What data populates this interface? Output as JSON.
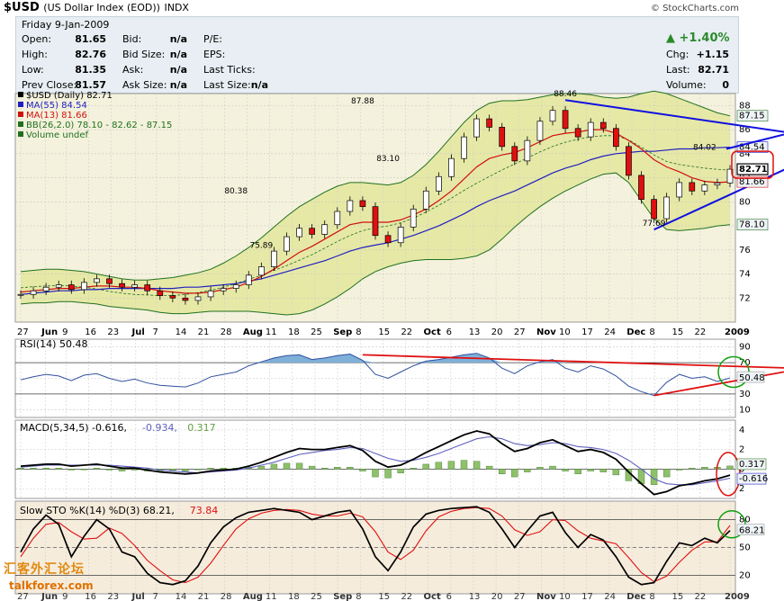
{
  "header": {
    "symbol": "$USD",
    "name": "(US Dollar Index (EOD))",
    "exchange": "INDX",
    "source": "© StockCharts.com"
  },
  "quote": {
    "date": "Friday   9-Jan-2009",
    "rows_left": [
      {
        "label": "Open:",
        "value": "81.65"
      },
      {
        "label": "High:",
        "value": "82.76"
      },
      {
        "label": "Low:",
        "value": "81.35"
      },
      {
        "label": "Prev Close:",
        "value": "81.57"
      }
    ],
    "rows_mid": [
      {
        "label": "Bid:",
        "value": "n/a"
      },
      {
        "label": "Bid Size:",
        "value": "n/a"
      },
      {
        "label": "Ask:",
        "value": "n/a"
      },
      {
        "label": "Ask Size:",
        "value": "n/a"
      }
    ],
    "rows_right": [
      {
        "label": "P/E:",
        "value": ""
      },
      {
        "label": "EPS:",
        "value": ""
      },
      {
        "label": "Last Ticks:",
        "value": ""
      },
      {
        "label": "Last Size:",
        "value": "n/a"
      }
    ],
    "pct_change": "+1.40%",
    "rows_far": [
      {
        "label": "Chg:",
        "value": "+1.15"
      },
      {
        "label": "Last:",
        "value": "82.71"
      },
      {
        "label": "Volume:",
        "value": "0"
      }
    ]
  },
  "chart_data": [
    {
      "type": "line",
      "panel": "price",
      "legend": [
        {
          "text": "$USD (Daily) 82.71",
          "color": "#000000"
        },
        {
          "text": "MA(55) 84.54",
          "color": "#2020c0"
        },
        {
          "text": "MA(13) 81.66",
          "color": "#d01010"
        },
        {
          "text": "BB(26,2.0) 78.10 - 82.62 - 87.15",
          "color": "#207020"
        },
        {
          "text": "Volume undef",
          "color": "#207020"
        }
      ],
      "ylim": [
        70,
        89
      ],
      "y_ticks": [
        72,
        74,
        76,
        78,
        80,
        82,
        84,
        86,
        88
      ],
      "annotations": [
        {
          "text": "87.88",
          "x": 27,
          "y": 87.88
        },
        {
          "text": "88.46",
          "x": 43,
          "y": 88.46
        },
        {
          "text": "80.38",
          "x": 17,
          "y": 80.38
        },
        {
          "text": "83.10",
          "x": 29,
          "y": 83.1
        },
        {
          "text": "75.89",
          "x": 19,
          "y": 75.89
        },
        {
          "text": "84.02",
          "x": 54,
          "y": 84.02
        },
        {
          "text": "77.69",
          "x": 50,
          "y": 77.69
        }
      ],
      "right_labels": [
        {
          "text": "87.15",
          "y": 87.15,
          "style": "green"
        },
        {
          "text": "84.54",
          "y": 84.54,
          "style": "blue"
        },
        {
          "text": "82.71",
          "y": 82.71,
          "style": "boxed"
        },
        {
          "text": "81.66",
          "y": 81.66,
          "style": "red"
        },
        {
          "text": "78.10",
          "y": 78.1,
          "style": "green"
        }
      ],
      "x_labels": [
        "27",
        "Jun",
        "9",
        "16",
        "23",
        "Jul",
        "7",
        "14",
        "21",
        "28",
        "Aug",
        "11",
        "18",
        "25",
        "Sep",
        "8",
        "15",
        "22",
        "Oct",
        "6",
        "13",
        "20",
        "27",
        "Nov",
        "10",
        "17",
        "24",
        "Dec",
        "8",
        "15",
        "22",
        "2009"
      ],
      "x_label_pos": [
        0,
        1.3,
        2.4,
        3.6,
        4.8,
        6.1,
        7.2,
        8.4,
        9.6,
        10.8,
        12,
        13.2,
        14.4,
        15.6,
        16.8,
        18,
        19.2,
        20.4,
        21.6,
        22.8,
        24,
        25.2,
        26.4,
        27.6,
        28.8,
        30,
        31.2,
        32.4,
        33.6,
        34.8,
        36,
        37.6
      ],
      "close": [
        72.3,
        72.6,
        72.9,
        73.1,
        72.7,
        73.3,
        73.6,
        73.2,
        72.9,
        73.1,
        72.6,
        72.2,
        72.0,
        71.8,
        72.1,
        72.6,
        72.8,
        73.1,
        73.9,
        74.6,
        75.9,
        77.1,
        77.8,
        77.3,
        78.1,
        79.2,
        80.1,
        79.6,
        77.2,
        76.6,
        77.9,
        79.4,
        80.9,
        82.1,
        83.6,
        85.4,
        86.9,
        86.2,
        84.6,
        83.4,
        85.1,
        86.7,
        87.6,
        86.1,
        85.4,
        86.6,
        86.1,
        84.6,
        82.2,
        80.2,
        78.6,
        80.4,
        81.6,
        80.9,
        81.4,
        81.57,
        82.71
      ],
      "ma13": [
        72.5,
        72.6,
        72.7,
        72.8,
        72.8,
        72.9,
        73.0,
        73.0,
        72.9,
        72.9,
        72.8,
        72.6,
        72.5,
        72.4,
        72.4,
        72.5,
        72.7,
        72.9,
        73.3,
        73.8,
        74.4,
        75.1,
        75.8,
        76.3,
        76.9,
        77.5,
        78.1,
        78.3,
        78.3,
        78.3,
        78.5,
        78.9,
        79.4,
        80.1,
        80.9,
        81.9,
        82.9,
        83.6,
        83.9,
        84.1,
        84.5,
        85.0,
        85.5,
        85.7,
        85.8,
        86.0,
        86.0,
        85.7,
        85.1,
        84.4,
        83.5,
        82.9,
        82.5,
        82.0,
        81.7,
        81.6,
        81.66
      ],
      "ma55": [
        72.3,
        72.4,
        72.5,
        72.6,
        72.6,
        72.7,
        72.7,
        72.8,
        72.8,
        72.8,
        72.8,
        72.8,
        72.8,
        72.9,
        72.9,
        73.0,
        73.1,
        73.2,
        73.4,
        73.6,
        73.9,
        74.2,
        74.5,
        74.8,
        75.1,
        75.5,
        75.9,
        76.2,
        76.4,
        76.6,
        76.9,
        77.2,
        77.6,
        78.0,
        78.5,
        79.0,
        79.6,
        80.1,
        80.5,
        80.9,
        81.4,
        81.9,
        82.4,
        82.8,
        83.1,
        83.5,
        83.8,
        84.0,
        84.1,
        84.2,
        84.2,
        84.3,
        84.4,
        84.4,
        84.5,
        84.5,
        84.54
      ],
      "bb_upper": [
        74.2,
        74.3,
        74.4,
        74.4,
        74.3,
        74.2,
        74.0,
        73.8,
        73.6,
        73.5,
        73.5,
        73.6,
        73.7,
        73.9,
        74.1,
        74.4,
        74.9,
        75.5,
        76.2,
        77.0,
        77.9,
        78.8,
        79.6,
        80.2,
        80.8,
        81.3,
        81.6,
        81.6,
        81.5,
        81.4,
        81.6,
        82.2,
        83.1,
        84.2,
        85.4,
        86.6,
        87.6,
        88.2,
        88.4,
        88.4,
        88.5,
        88.7,
        88.9,
        89.0,
        89.0,
        88.9,
        88.7,
        88.6,
        88.7,
        89.0,
        89.2,
        89.0,
        88.6,
        88.2,
        87.8,
        87.4,
        87.15
      ],
      "bb_lower": [
        71.5,
        71.6,
        71.6,
        71.7,
        71.7,
        71.6,
        71.5,
        71.3,
        71.2,
        71.1,
        71.0,
        70.8,
        70.7,
        70.7,
        70.8,
        70.9,
        70.9,
        70.9,
        70.9,
        70.8,
        70.7,
        70.6,
        70.7,
        71.0,
        71.5,
        72.1,
        72.8,
        73.6,
        74.2,
        74.6,
        74.9,
        75.1,
        75.2,
        75.2,
        75.2,
        75.3,
        75.5,
        76.0,
        76.9,
        77.9,
        78.8,
        79.6,
        80.3,
        80.9,
        81.4,
        81.9,
        82.3,
        82.4,
        81.6,
        80.1,
        78.6,
        77.7,
        77.6,
        77.7,
        77.8,
        78.0,
        78.1
      ],
      "channel_lines": [
        {
          "from": [
            43,
            88.46
          ],
          "to": [
            60,
            84.6
          ],
          "color": "#1010e0"
        },
        {
          "from": [
            50,
            77.69
          ],
          "to": [
            60,
            84.0
          ],
          "color": "#1010e0"
        }
      ]
    },
    {
      "type": "line",
      "panel": "rsi",
      "legend": [
        {
          "text": "RSI(14) 50.48",
          "color": "#000000"
        }
      ],
      "ylim": [
        0,
        100
      ],
      "y_ticks": [
        10,
        30,
        50,
        70,
        90
      ],
      "right_label": "50.48",
      "values": [
        48,
        52,
        55,
        53,
        47,
        54,
        56,
        50,
        46,
        49,
        44,
        41,
        40,
        39,
        44,
        52,
        55,
        58,
        66,
        71,
        76,
        79,
        80,
        74,
        76,
        79,
        81,
        73,
        55,
        50,
        58,
        66,
        72,
        74,
        77,
        80,
        82,
        76,
        63,
        56,
        66,
        71,
        74,
        63,
        58,
        66,
        62,
        53,
        40,
        33,
        28,
        45,
        55,
        50,
        52,
        46,
        50.48
      ],
      "trend_lines": [
        {
          "from": [
            27,
            80
          ],
          "to": [
            60,
            65
          ],
          "color": "#e01010"
        },
        {
          "from": [
            50,
            28
          ],
          "to": [
            60,
            62
          ],
          "color": "#e01010"
        }
      ]
    },
    {
      "type": "line",
      "panel": "macd",
      "legend": [
        {
          "text": "MACD(5,34,5) -0.616,",
          "color": "#000000"
        },
        {
          "text": "-0.934,",
          "color": "#6060c0"
        },
        {
          "text": "0.317",
          "color": "#60a040"
        }
      ],
      "ylim": [
        -3,
        5
      ],
      "y_ticks": [
        -2,
        0,
        2,
        4
      ],
      "y_tick_labels": [
        "2",
        "0",
        "2",
        "4"
      ],
      "right_labels": [
        "0.317",
        "-0.616"
      ],
      "macd": [
        0.3,
        0.4,
        0.5,
        0.5,
        0.3,
        0.4,
        0.5,
        0.3,
        0.1,
        0.1,
        -0.1,
        -0.3,
        -0.4,
        -0.5,
        -0.4,
        -0.2,
        -0.1,
        0.0,
        0.3,
        0.7,
        1.2,
        1.7,
        2.1,
        2.0,
        2.0,
        2.2,
        2.4,
        1.9,
        0.8,
        0.2,
        0.4,
        1.0,
        1.7,
        2.3,
        2.9,
        3.5,
        3.9,
        3.6,
        2.6,
        1.8,
        2.1,
        2.7,
        3.0,
        2.4,
        1.8,
        2.0,
        1.7,
        1.0,
        -0.3,
        -1.5,
        -2.6,
        -2.3,
        -1.7,
        -1.5,
        -1.2,
        -1.0,
        -0.616
      ],
      "signal": [
        0.2,
        0.3,
        0.4,
        0.4,
        0.4,
        0.4,
        0.4,
        0.4,
        0.3,
        0.2,
        0.1,
        -0.1,
        -0.2,
        -0.3,
        -0.4,
        -0.3,
        -0.2,
        -0.1,
        0.1,
        0.4,
        0.7,
        1.1,
        1.5,
        1.7,
        1.9,
        2.0,
        2.2,
        2.1,
        1.6,
        1.1,
        0.8,
        0.9,
        1.2,
        1.6,
        2.1,
        2.6,
        3.1,
        3.3,
        3.1,
        2.6,
        2.4,
        2.5,
        2.7,
        2.6,
        2.3,
        2.2,
        2.0,
        1.6,
        0.9,
        0.0,
        -1.0,
        -1.5,
        -1.6,
        -1.6,
        -1.4,
        -1.2,
        -0.934
      ]
    },
    {
      "type": "line",
      "panel": "stochastic",
      "legend": [
        {
          "text": "Slow STO %K(14) %D(3) 68.21,",
          "color": "#000000"
        },
        {
          "text": "73.84",
          "color": "#e01010"
        }
      ],
      "ylim": [
        0,
        100
      ],
      "y_ticks": [
        20,
        50,
        80
      ],
      "right_label": "68.21",
      "k": [
        45,
        70,
        85,
        75,
        40,
        62,
        80,
        70,
        45,
        40,
        22,
        12,
        10,
        14,
        30,
        55,
        72,
        82,
        88,
        90,
        92,
        90,
        88,
        80,
        84,
        88,
        90,
        70,
        40,
        25,
        45,
        72,
        86,
        90,
        92,
        93,
        94,
        88,
        70,
        50,
        68,
        84,
        88,
        66,
        50,
        64,
        58,
        40,
        18,
        10,
        12,
        35,
        55,
        52,
        60,
        55,
        68.21
      ],
      "d": [
        40,
        60,
        75,
        77,
        67,
        59,
        60,
        71,
        65,
        52,
        36,
        25,
        15,
        12,
        18,
        33,
        52,
        70,
        81,
        87,
        90,
        91,
        90,
        86,
        84,
        84,
        87,
        83,
        67,
        45,
        37,
        47,
        68,
        83,
        89,
        92,
        93,
        92,
        84,
        69,
        63,
        67,
        80,
        79,
        68,
        60,
        57,
        54,
        39,
        23,
        13,
        19,
        34,
        47,
        56,
        56,
        73.84
      ]
    }
  ]
}
